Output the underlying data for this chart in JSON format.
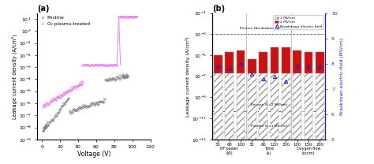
{
  "panel_a": {
    "title": "(a)",
    "xlabel": "Voltage (V)",
    "ylabel": "Leakage current density (A/cm²)",
    "xlim": [
      -5,
      120
    ],
    "ylim": [
      1e-09,
      30
    ],
    "yticks": [
      -9,
      -8,
      -7,
      -6,
      -5,
      -4,
      -3,
      -2,
      -1,
      0,
      1
    ],
    "pristine_color": "#777777",
    "plasma_color": "#ee82ee",
    "legend_labels": [
      "Pristine",
      "O₂ plasma-treated"
    ]
  },
  "panel_b": {
    "title": "(b)",
    "bar_labels": [
      "30",
      "60",
      "100",
      "30",
      "60",
      "120",
      "300",
      "100",
      "150",
      "200"
    ],
    "group_labels": [
      "RF power\n(W)",
      "Time\n(s)",
      "Oxygen flow\n(sccm)"
    ],
    "group_centers": [
      1.0,
      4.5,
      8.0
    ],
    "ylabel_left": "Leakage current density (A/cm²)",
    "ylabel_right": "Breakdown electric-field (MV/cm)",
    "bar_bottom_1MV": 2e-07,
    "bar_top_values": [
      1e-05,
      2e-05,
      3e-05,
      4e-06,
      2e-05,
      6e-05,
      6e-05,
      3e-05,
      2e-05,
      2e-05
    ],
    "breakdown_values": [
      7.9,
      7.8,
      8.0,
      7.6,
      7.4,
      7.5,
      7.3,
      7.9,
      7.9,
      7.9
    ],
    "pristine_breakdown_y": 0.001,
    "pristine_E2_y": 5e-11,
    "pristine_E1_y": 5e-13,
    "ylim": [
      1e-13,
      0.1
    ],
    "y2lim": [
      5,
      10
    ],
    "y2ticks": [
      5,
      6,
      7,
      8,
      9,
      10
    ],
    "hatch_color": "#cccccc",
    "red_color": "#cc1111",
    "blue_color": "#2222bb",
    "legend_1mv": "1 MV/cm",
    "legend_2mv": "2 MV/cm",
    "legend_bd": "Breakdown electric-field"
  }
}
